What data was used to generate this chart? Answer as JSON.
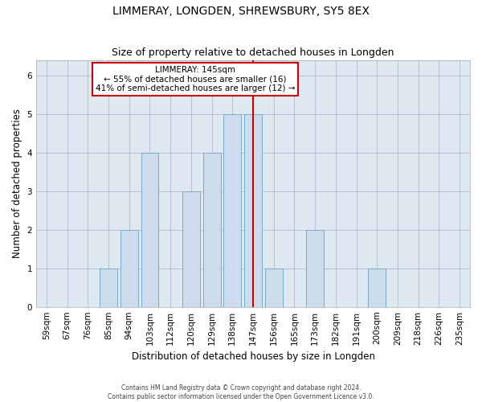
{
  "title": "LIMMERAY, LONGDEN, SHREWSBURY, SY5 8EX",
  "subtitle": "Size of property relative to detached houses in Longden",
  "xlabel": "Distribution of detached houses by size in Longden",
  "ylabel": "Number of detached properties",
  "categories": [
    "59sqm",
    "67sqm",
    "76sqm",
    "85sqm",
    "94sqm",
    "103sqm",
    "112sqm",
    "120sqm",
    "129sqm",
    "138sqm",
    "147sqm",
    "156sqm",
    "165sqm",
    "173sqm",
    "182sqm",
    "191sqm",
    "200sqm",
    "209sqm",
    "218sqm",
    "226sqm",
    "235sqm"
  ],
  "values": [
    0,
    0,
    0,
    1,
    2,
    4,
    0,
    3,
    4,
    5,
    5,
    1,
    0,
    2,
    0,
    0,
    1,
    0,
    0,
    0,
    0
  ],
  "highlight_index": 10,
  "bar_color": "#ccdcec",
  "bar_edgecolor": "#7aaac8",
  "highlight_line_color": "#cc0000",
  "annotation_text": "LIMMERAY: 145sqm\n← 55% of detached houses are smaller (16)\n41% of semi-detached houses are larger (12) →",
  "annotation_box_edgecolor": "#cc0000",
  "ylim": [
    0,
    6.4
  ],
  "yticks": [
    0,
    1,
    2,
    3,
    4,
    5,
    6
  ],
  "grid_color": "#bbbbcc",
  "bg_color": "#dde8f0",
  "title_fontsize": 10,
  "subtitle_fontsize": 9,
  "tick_fontsize": 7.5,
  "ylabel_fontsize": 8.5,
  "xlabel_fontsize": 8.5,
  "footer_line1": "Contains HM Land Registry data © Crown copyright and database right 2024.",
  "footer_line2": "Contains public sector information licensed under the Open Government Licence v3.0."
}
